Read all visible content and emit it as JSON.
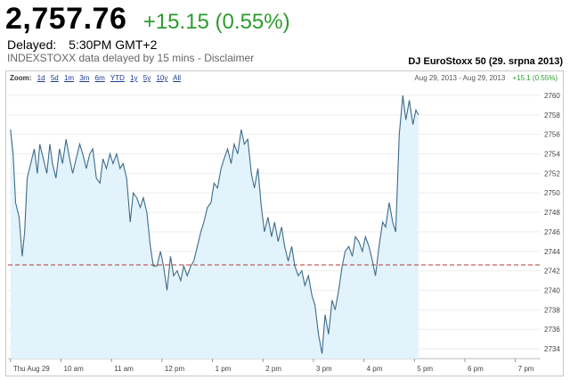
{
  "quote": {
    "price": "2,757.76",
    "change": "+15.15 (0.55%)",
    "delayed_label": "Delayed:",
    "delayed_time": "5:30PM GMT+2",
    "disclaimer": "INDEXSTOXX data delayed by 15 mins - Disclaimer"
  },
  "colors": {
    "positive": "#2d9b2d",
    "line": "#3d6b8a",
    "area": "#e3f3fb",
    "prev_close": "#b03a3a"
  },
  "toolbar": {
    "zoom_label": "Zoom:",
    "zoom_options": [
      "1d",
      "5d",
      "1m",
      "3m",
      "6m",
      "YTD",
      "1y",
      "5y",
      "10y",
      "All"
    ],
    "range_text": "Aug 29, 2013 - Aug 29, 2013",
    "range_change": "+15.1 (0.55%)"
  },
  "chart_data": {
    "type": "area",
    "title": "DJ EuroStoxx 50 (29. srpna 2013)",
    "x_tick_labels": [
      "Thu Aug 29",
      "10 am",
      "11 am",
      "12 pm",
      "1 pm",
      "2 pm",
      "3 pm",
      "4 pm",
      "5 pm",
      "6 pm",
      "7 pm"
    ],
    "x_tick_hours": [
      9,
      10,
      11,
      12,
      13,
      14,
      15,
      16,
      17,
      18,
      19
    ],
    "xlim_hours": [
      8.95,
      19.5
    ],
    "y_ticks": [
      2734,
      2736,
      2738,
      2740,
      2742,
      2744,
      2746,
      2748,
      2750,
      2752,
      2754,
      2756,
      2758,
      2760
    ],
    "ylim": [
      2733,
      2761
    ],
    "y_axis_side": "right",
    "grid": "horizontal",
    "previous_close": 2742.61,
    "series": [
      {
        "x_hours": [
          9.0,
          9.05,
          9.1,
          9.17,
          9.23,
          9.28,
          9.33,
          9.4,
          9.47,
          9.53,
          9.58,
          9.65,
          9.72,
          9.78,
          9.83,
          9.9,
          9.97,
          10.03,
          10.1,
          10.17,
          10.23,
          10.3,
          10.37,
          10.43,
          10.5,
          10.57,
          10.63,
          10.7,
          10.77,
          10.83,
          10.9,
          10.97,
          11.03,
          11.1,
          11.17,
          11.23,
          11.3,
          11.37,
          11.43,
          11.5,
          11.57,
          11.63,
          11.7,
          11.77,
          11.83,
          11.9,
          11.97,
          12.03,
          12.1,
          12.17,
          12.23,
          12.3,
          12.37,
          12.43,
          12.5,
          12.57,
          12.63,
          12.7,
          12.77,
          12.83,
          12.9,
          12.97,
          13.03,
          13.1,
          13.17,
          13.23,
          13.3,
          13.37,
          13.43,
          13.5,
          13.57,
          13.63,
          13.7,
          13.77,
          13.83,
          13.9,
          13.97,
          14.03,
          14.1,
          14.17,
          14.23,
          14.3,
          14.37,
          14.43,
          14.5,
          14.57,
          14.63,
          14.7,
          14.77,
          14.83,
          14.9,
          14.97,
          15.03,
          15.1,
          15.17,
          15.23,
          15.3,
          15.37,
          15.43,
          15.5,
          15.57,
          15.63,
          15.7,
          15.77,
          15.83,
          15.9,
          15.97,
          16.03,
          16.1,
          16.17,
          16.23,
          16.3,
          16.37,
          16.43,
          16.5,
          16.57,
          16.63,
          16.7,
          16.77,
          16.83,
          16.9,
          16.97,
          17.03,
          17.08
        ],
        "values": [
          2756.5,
          2754.0,
          2749.0,
          2747.5,
          2743.5,
          2746.0,
          2751.5,
          2753.0,
          2754.5,
          2752.0,
          2755.0,
          2753.5,
          2752.0,
          2755.0,
          2753.0,
          2751.5,
          2754.5,
          2753.0,
          2755.5,
          2753.5,
          2752.0,
          2753.5,
          2755.0,
          2754.0,
          2752.5,
          2754.0,
          2754.5,
          2751.5,
          2751.0,
          2753.5,
          2752.5,
          2754.0,
          2753.0,
          2754.0,
          2752.5,
          2753.0,
          2751.5,
          2747.0,
          2750.0,
          2749.5,
          2748.5,
          2749.5,
          2748.0,
          2744.5,
          2742.5,
          2742.5,
          2744.0,
          2742.5,
          2740.0,
          2743.5,
          2741.5,
          2742.0,
          2741.0,
          2742.5,
          2741.5,
          2742.5,
          2743.0,
          2744.5,
          2746.0,
          2747.0,
          2748.5,
          2749.0,
          2751.0,
          2750.5,
          2752.5,
          2753.5,
          2754.5,
          2753.0,
          2755.0,
          2754.0,
          2756.5,
          2755.0,
          2755.5,
          2752.0,
          2750.5,
          2752.5,
          2748.5,
          2746.0,
          2747.5,
          2745.5,
          2747.0,
          2745.0,
          2746.5,
          2744.5,
          2743.0,
          2744.5,
          2742.5,
          2741.5,
          2742.0,
          2740.5,
          2741.5,
          2739.5,
          2738.5,
          2735.5,
          2733.5,
          2737.5,
          2735.5,
          2739.0,
          2738.0,
          2740.0,
          2742.5,
          2744.0,
          2744.5,
          2743.5,
          2745.5,
          2745.0,
          2744.0,
          2745.5,
          2744.5,
          2743.0,
          2741.5,
          2744.5,
          2747.0,
          2746.5,
          2749.0,
          2747.0,
          2746.0,
          2756.0,
          2760.0,
          2757.5,
          2759.5,
          2757.0,
          2758.5,
          2758.0
        ]
      }
    ]
  }
}
